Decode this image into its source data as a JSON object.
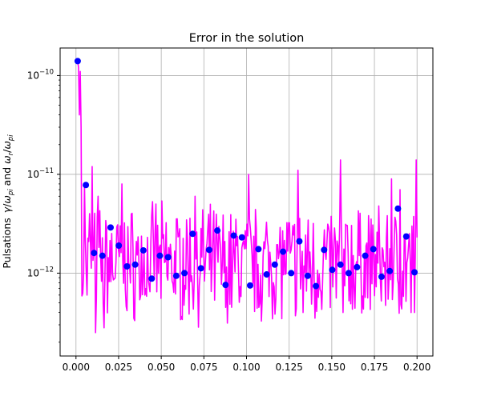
{
  "chart_data": {
    "type": "line",
    "title": "Error in the solution",
    "xlabel": "",
    "ylabel": "Pulsations γ/ω_pi and ω_r/ω_pi",
    "ylabel_parts": {
      "prefix": "Pulsations",
      "gamma": "γ",
      "slash": "/",
      "omega": "ω",
      "sub_pi": "pi",
      "sub_r": "r",
      "and": "and"
    },
    "x_scale": "linear",
    "y_scale": "log",
    "xlim": [
      -0.0093,
      0.2093
    ],
    "ylim": [
      1.45e-13,
      1.9e-10
    ],
    "x_ticks": [
      0.0,
      0.025,
      0.05,
      0.075,
      0.1,
      0.125,
      0.15,
      0.175,
      0.2
    ],
    "x_tick_labels": [
      "0.000",
      "0.025",
      "0.050",
      "0.075",
      "0.100",
      "0.125",
      "0.150",
      "0.175",
      "0.200"
    ],
    "y_ticks": [
      1e-12,
      1e-11,
      1e-10
    ],
    "y_tick_labels": [
      {
        "base": "10",
        "exp": "−12"
      },
      {
        "base": "10",
        "exp": "−11"
      },
      {
        "base": "10",
        "exp": "−10"
      }
    ],
    "grid": true,
    "legend": "none",
    "colors": {
      "line": "#ff00ff",
      "markers": "#0000ff",
      "grid": "#b0b0b0",
      "axes": "#000000"
    },
    "series": [
      {
        "type": "line",
        "x_start": 0.001,
        "x_end": 0.2,
        "points": 400,
        "envelope_note": "noisy error curve, spike near 1.4e-10 at x≈0.001, mostly between 5e-13 and 5e-12",
        "anchors": [
          [
            0.001,
            1.4e-10
          ],
          [
            0.0015,
            1.2e-10
          ],
          [
            0.002,
            4e-11
          ],
          [
            0.0025,
            1.1e-10
          ],
          [
            0.003,
            3e-11
          ],
          [
            0.0045,
            1e-12
          ],
          [
            0.005,
            8e-12
          ],
          [
            0.0065,
            6e-13
          ],
          [
            0.008,
            4e-12
          ],
          [
            0.0095,
            1.2e-11
          ],
          [
            0.0115,
            2.5e-13
          ],
          [
            0.013,
            6e-12
          ],
          [
            0.0145,
            1.5e-12
          ],
          [
            0.0165,
            2.8e-13
          ],
          [
            0.027,
            8e-12
          ],
          [
            0.047,
            5e-12
          ],
          [
            0.07,
            6e-12
          ],
          [
            0.088,
            4.5e-13
          ],
          [
            0.101,
            1e-11
          ],
          [
            0.107,
            4.5e-13
          ],
          [
            0.13,
            1.1e-11
          ],
          [
            0.133,
            4e-13
          ],
          [
            0.14,
            3.5e-13
          ],
          [
            0.155,
            1.4e-11
          ],
          [
            0.1565,
            4e-13
          ],
          [
            0.185,
            9e-12
          ],
          [
            0.19,
            7e-12
          ],
          [
            0.1965,
            4e-13
          ],
          [
            0.1985,
            4e-13
          ],
          [
            0.1995,
            1.4e-11
          ]
        ]
      },
      {
        "type": "scatter",
        "x": [
          0.001,
          0.0058,
          0.0106,
          0.0155,
          0.0203,
          0.0251,
          0.0299,
          0.0347,
          0.0395,
          0.0444,
          0.0492,
          0.054,
          0.0588,
          0.0636,
          0.0684,
          0.0733,
          0.0781,
          0.0829,
          0.0877,
          0.0925,
          0.0973,
          0.1021,
          0.107,
          0.1118,
          0.1166,
          0.1214,
          0.1262,
          0.131,
          0.1359,
          0.1407,
          0.1455,
          0.1503,
          0.1551,
          0.1599,
          0.1648,
          0.1696,
          0.1744,
          0.1792,
          0.184,
          0.1888,
          0.1937,
          0.1985
        ],
        "y": [
          1.4e-10,
          7.8e-12,
          1.6e-12,
          1.5e-12,
          2.9e-12,
          1.9e-12,
          1.17e-12,
          1.22e-12,
          1.7e-12,
          8.8e-13,
          1.5e-12,
          1.45e-12,
          9.4e-13,
          1e-12,
          2.5e-12,
          1.12e-12,
          1.72e-12,
          2.7e-12,
          7.6e-13,
          2.4e-12,
          2.3e-12,
          7.5e-13,
          1.75e-12,
          9.7e-13,
          1.22e-12,
          1.65e-12,
          1e-12,
          2.1e-12,
          9.4e-13,
          7.4e-13,
          1.72e-12,
          1.08e-12,
          1.22e-12,
          1e-12,
          1.15e-12,
          1.5e-12,
          1.75e-12,
          9.2e-13,
          1.05e-12,
          4.5e-12,
          2.35e-12,
          1.02e-12
        ]
      }
    ]
  }
}
